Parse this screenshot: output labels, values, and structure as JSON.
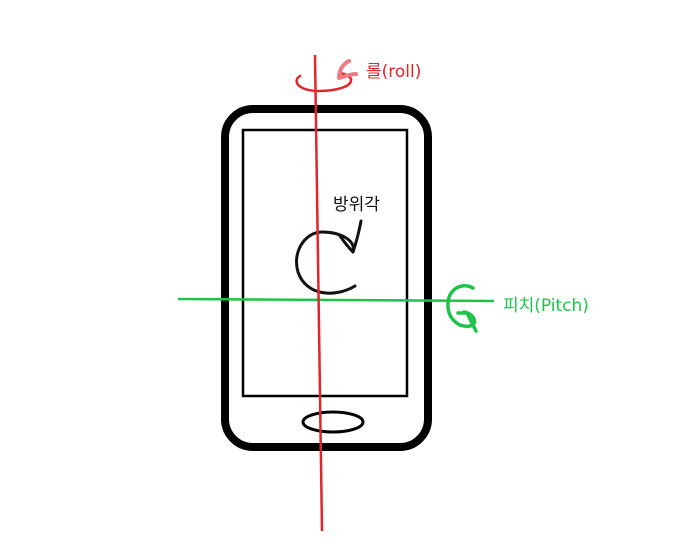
{
  "colors": {
    "phone": "#000000",
    "roll": "#e0262c",
    "pitch": "#1ec44a",
    "azimuth": "#111111",
    "background": "#ffffff"
  },
  "axes": {
    "roll": {
      "label": "롤(roll)"
    },
    "pitch": {
      "label": "피치(Pitch)"
    },
    "azimuth": {
      "label": "방위각"
    }
  }
}
